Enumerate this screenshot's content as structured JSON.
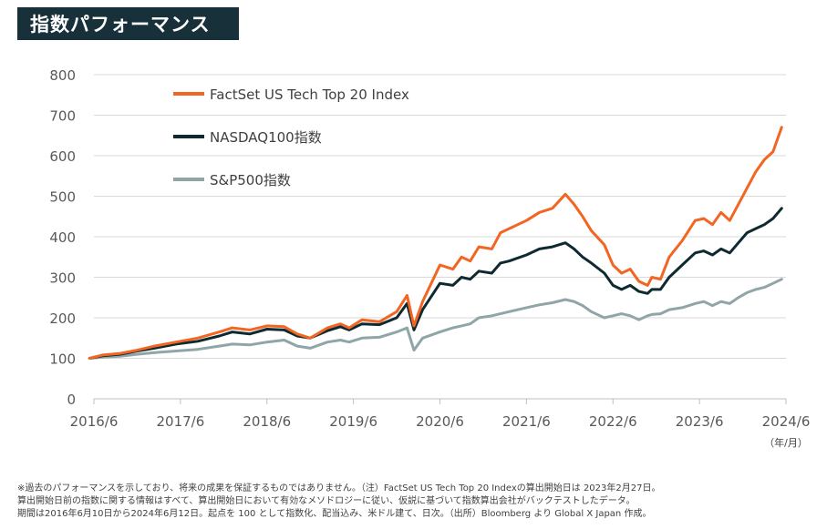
{
  "title": "指数パフォーマンス",
  "unit_label": "（年/月）",
  "footnote": [
    "※過去のパフォーマンスを示しており、将来の成果を保証するものではありません。（注）FactSet US Tech Top 20 Indexの算出開始日は 2023年2月27日。",
    "算出開始日前の指数に関する情報はすべて、算出開始日において有効なメソドロジーに従い、仮説に基づいて指数算出会社がバックテストしたデータ。",
    "期間は2016年6月10日から2024年6月12日。起点を 100 として指数化、配当込み、米ドル建て、日次。（出所）Bloomberg より Global X Japan 作成。"
  ],
  "colors": {
    "title_bg": "#17303a",
    "grid": "#d9d9d9",
    "axis": "#bfbfbf"
  },
  "chart_data": {
    "type": "line",
    "x_ticks": [
      "2016/6",
      "2017/6",
      "2018/6",
      "2019/6",
      "2020/6",
      "2021/6",
      "2022/6",
      "2023/6",
      "2024/6"
    ],
    "y_ticks": [
      0,
      100,
      200,
      300,
      400,
      500,
      600,
      700,
      800
    ],
    "ylim": [
      0,
      800
    ],
    "xlim": [
      2016.5,
      2024.5
    ],
    "grid": "horizontal",
    "legend_position": "top-left",
    "series": [
      {
        "name": "FactSet US Tech Top 20 Index",
        "color": "#f26522",
        "x": [
          2016.45,
          2016.6,
          2016.8,
          2017.0,
          2017.2,
          2017.45,
          2017.7,
          2017.95,
          2018.1,
          2018.3,
          2018.5,
          2018.7,
          2018.85,
          2019.0,
          2019.2,
          2019.35,
          2019.45,
          2019.6,
          2019.8,
          2020.0,
          2020.12,
          2020.2,
          2020.3,
          2020.5,
          2020.65,
          2020.75,
          2020.85,
          2020.95,
          2021.1,
          2021.2,
          2021.3,
          2021.5,
          2021.65,
          2021.8,
          2021.95,
          2022.05,
          2022.15,
          2022.25,
          2022.4,
          2022.5,
          2022.6,
          2022.7,
          2022.8,
          2022.9,
          2022.95,
          2023.05,
          2023.15,
          2023.3,
          2023.45,
          2023.55,
          2023.65,
          2023.75,
          2023.85,
          2023.95,
          2024.05,
          2024.15,
          2024.25,
          2024.35,
          2024.45
        ],
        "y": [
          100,
          108,
          112,
          120,
          130,
          140,
          150,
          165,
          175,
          170,
          180,
          178,
          160,
          150,
          175,
          185,
          175,
          195,
          190,
          215,
          255,
          180,
          240,
          330,
          320,
          350,
          340,
          375,
          370,
          410,
          420,
          440,
          460,
          470,
          505,
          480,
          450,
          415,
          380,
          330,
          310,
          320,
          290,
          280,
          300,
          295,
          350,
          390,
          440,
          445,
          430,
          460,
          440,
          480,
          520,
          560,
          590,
          610,
          670
        ]
      },
      {
        "name": "NASDAQ100指数",
        "color": "#0e2a30",
        "x": [
          2016.45,
          2016.6,
          2016.8,
          2017.0,
          2017.2,
          2017.45,
          2017.7,
          2017.95,
          2018.1,
          2018.3,
          2018.5,
          2018.7,
          2018.85,
          2019.0,
          2019.2,
          2019.35,
          2019.45,
          2019.6,
          2019.8,
          2020.0,
          2020.12,
          2020.2,
          2020.3,
          2020.5,
          2020.65,
          2020.75,
          2020.85,
          2020.95,
          2021.1,
          2021.2,
          2021.3,
          2021.5,
          2021.65,
          2021.8,
          2021.95,
          2022.05,
          2022.15,
          2022.25,
          2022.4,
          2022.5,
          2022.6,
          2022.7,
          2022.8,
          2022.9,
          2022.95,
          2023.05,
          2023.15,
          2023.3,
          2023.45,
          2023.55,
          2023.65,
          2023.75,
          2023.85,
          2023.95,
          2024.05,
          2024.15,
          2024.25,
          2024.35,
          2024.45
        ],
        "y": [
          100,
          106,
          110,
          118,
          125,
          135,
          142,
          155,
          165,
          160,
          172,
          170,
          155,
          150,
          168,
          178,
          170,
          185,
          183,
          200,
          235,
          170,
          220,
          285,
          280,
          300,
          295,
          315,
          310,
          335,
          340,
          355,
          370,
          375,
          385,
          370,
          350,
          335,
          310,
          280,
          270,
          280,
          265,
          260,
          270,
          270,
          300,
          330,
          360,
          365,
          355,
          370,
          360,
          385,
          410,
          420,
          430,
          445,
          470
        ]
      },
      {
        "name": "S&P500指数",
        "color": "#8fa5a8",
        "x": [
          2016.45,
          2016.6,
          2016.8,
          2017.0,
          2017.2,
          2017.45,
          2017.7,
          2017.95,
          2018.1,
          2018.3,
          2018.5,
          2018.7,
          2018.85,
          2019.0,
          2019.2,
          2019.35,
          2019.45,
          2019.6,
          2019.8,
          2020.0,
          2020.12,
          2020.2,
          2020.3,
          2020.5,
          2020.65,
          2020.75,
          2020.85,
          2020.95,
          2021.1,
          2021.2,
          2021.3,
          2021.5,
          2021.65,
          2021.8,
          2021.95,
          2022.05,
          2022.15,
          2022.25,
          2022.4,
          2022.5,
          2022.6,
          2022.7,
          2022.8,
          2022.9,
          2022.95,
          2023.05,
          2023.15,
          2023.3,
          2023.45,
          2023.55,
          2023.65,
          2023.75,
          2023.85,
          2023.95,
          2024.05,
          2024.15,
          2024.25,
          2024.35,
          2024.45
        ],
        "y": [
          100,
          103,
          105,
          110,
          114,
          118,
          122,
          130,
          135,
          133,
          140,
          145,
          130,
          125,
          140,
          145,
          140,
          150,
          152,
          165,
          175,
          120,
          150,
          165,
          175,
          180,
          185,
          200,
          205,
          210,
          215,
          225,
          232,
          237,
          245,
          240,
          230,
          215,
          200,
          205,
          210,
          205,
          195,
          205,
          208,
          210,
          220,
          225,
          235,
          240,
          230,
          240,
          235,
          250,
          262,
          270,
          275,
          285,
          295
        ]
      }
    ]
  }
}
